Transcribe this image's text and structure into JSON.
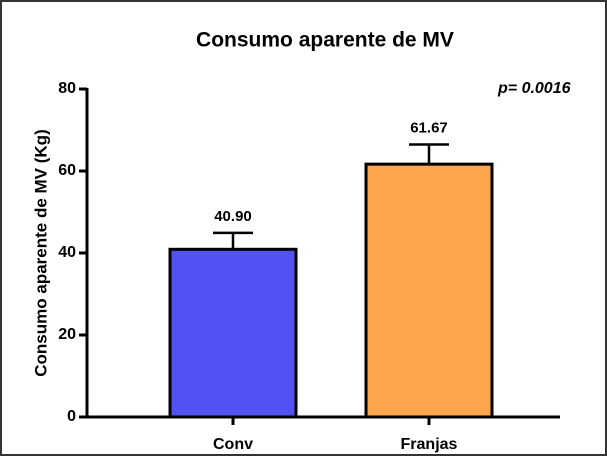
{
  "chart_data": {
    "type": "bar",
    "title": "Consumo aparente de MV",
    "y_label": "Consumo aparente de MV (Kg)",
    "annotation": "p= 0.0016",
    "categories": [
      "Conv",
      "Franjas"
    ],
    "values": [
      40.9,
      61.67
    ],
    "value_labels": [
      "40.90",
      "61.67"
    ],
    "errors": [
      4.0,
      4.8
    ],
    "colors": [
      "#5252f2",
      "#fba54d"
    ],
    "ylim": [
      0,
      80
    ],
    "yticks": [
      0,
      20,
      40,
      60,
      80
    ],
    "grid": false
  }
}
